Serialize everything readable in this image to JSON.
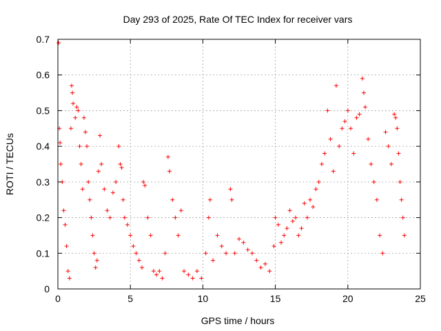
{
  "chart_data": {
    "type": "scatter",
    "title": "Day 293 of 2025, Rate Of TEC Index for receiver vars",
    "xlabel": "GPS time / hours",
    "ylabel": "ROTI / TECUs",
    "xlim": [
      0,
      25
    ],
    "ylim": [
      0,
      0.7
    ],
    "xticks": [
      0,
      5,
      10,
      15,
      20,
      25
    ],
    "yticks": [
      0,
      0.1,
      0.2,
      0.3,
      0.4,
      0.5,
      0.6,
      0.7
    ],
    "xtick_labels": [
      "0",
      "5",
      "10",
      "15",
      "20",
      "25"
    ],
    "ytick_labels": [
      "0",
      "0.1",
      "0.2",
      "0.3",
      "0.4",
      "0.5",
      "0.6",
      "0.7"
    ],
    "grid": true,
    "marker": "plus",
    "marker_color": "#ff0000",
    "series": [
      {
        "points": [
          [
            0.05,
            0.69
          ],
          [
            0.1,
            0.45
          ],
          [
            0.15,
            0.41
          ],
          [
            0.2,
            0.35
          ],
          [
            0.3,
            0.3
          ],
          [
            0.4,
            0.22
          ],
          [
            0.5,
            0.18
          ],
          [
            0.6,
            0.12
          ],
          [
            0.7,
            0.05
          ],
          [
            0.8,
            0.03
          ],
          [
            0.9,
            0.45
          ],
          [
            0.95,
            0.57
          ],
          [
            1.0,
            0.55
          ],
          [
            1.05,
            0.52
          ],
          [
            1.2,
            0.48
          ],
          [
            1.3,
            0.51
          ],
          [
            1.4,
            0.5
          ],
          [
            1.5,
            0.4
          ],
          [
            1.6,
            0.35
          ],
          [
            1.7,
            0.28
          ],
          [
            1.8,
            0.48
          ],
          [
            1.9,
            0.44
          ],
          [
            2.0,
            0.4
          ],
          [
            2.1,
            0.3
          ],
          [
            2.2,
            0.25
          ],
          [
            2.3,
            0.2
          ],
          [
            2.4,
            0.15
          ],
          [
            2.5,
            0.1
          ],
          [
            2.6,
            0.06
          ],
          [
            2.7,
            0.08
          ],
          [
            2.8,
            0.33
          ],
          [
            2.9,
            0.43
          ],
          [
            3.0,
            0.35
          ],
          [
            3.2,
            0.28
          ],
          [
            3.4,
            0.22
          ],
          [
            3.6,
            0.2
          ],
          [
            3.8,
            0.27
          ],
          [
            4.0,
            0.3
          ],
          [
            4.2,
            0.4
          ],
          [
            4.3,
            0.35
          ],
          [
            4.4,
            0.34
          ],
          [
            4.5,
            0.25
          ],
          [
            4.6,
            0.2
          ],
          [
            4.8,
            0.18
          ],
          [
            5.0,
            0.15
          ],
          [
            5.2,
            0.12
          ],
          [
            5.4,
            0.1
          ],
          [
            5.6,
            0.08
          ],
          [
            5.8,
            0.06
          ],
          [
            5.9,
            0.3
          ],
          [
            6.0,
            0.29
          ],
          [
            6.2,
            0.2
          ],
          [
            6.4,
            0.15
          ],
          [
            6.6,
            0.05
          ],
          [
            6.8,
            0.04
          ],
          [
            7.0,
            0.05
          ],
          [
            7.2,
            0.03
          ],
          [
            7.4,
            0.1
          ],
          [
            7.6,
            0.37
          ],
          [
            7.7,
            0.33
          ],
          [
            7.9,
            0.25
          ],
          [
            8.1,
            0.2
          ],
          [
            8.3,
            0.15
          ],
          [
            8.5,
            0.22
          ],
          [
            8.7,
            0.05
          ],
          [
            9.0,
            0.04
          ],
          [
            9.3,
            0.03
          ],
          [
            9.6,
            0.05
          ],
          [
            9.9,
            0.03
          ],
          [
            10.2,
            0.1
          ],
          [
            10.4,
            0.2
          ],
          [
            10.5,
            0.25
          ],
          [
            10.7,
            0.08
          ],
          [
            11.0,
            0.15
          ],
          [
            11.3,
            0.12
          ],
          [
            11.6,
            0.1
          ],
          [
            11.9,
            0.28
          ],
          [
            12.0,
            0.25
          ],
          [
            12.2,
            0.1
          ],
          [
            12.5,
            0.14
          ],
          [
            12.8,
            0.13
          ],
          [
            13.1,
            0.11
          ],
          [
            13.4,
            0.1
          ],
          [
            13.7,
            0.08
          ],
          [
            14.0,
            0.06
          ],
          [
            14.3,
            0.07
          ],
          [
            14.6,
            0.05
          ],
          [
            14.9,
            0.12
          ],
          [
            15.0,
            0.2
          ],
          [
            15.2,
            0.18
          ],
          [
            15.4,
            0.13
          ],
          [
            15.6,
            0.15
          ],
          [
            15.8,
            0.17
          ],
          [
            16.0,
            0.22
          ],
          [
            16.2,
            0.19
          ],
          [
            16.4,
            0.2
          ],
          [
            16.6,
            0.15
          ],
          [
            16.8,
            0.17
          ],
          [
            17.0,
            0.24
          ],
          [
            17.2,
            0.2
          ],
          [
            17.4,
            0.25
          ],
          [
            17.6,
            0.23
          ],
          [
            17.8,
            0.28
          ],
          [
            18.0,
            0.3
          ],
          [
            18.2,
            0.35
          ],
          [
            18.4,
            0.38
          ],
          [
            18.6,
            0.5
          ],
          [
            18.8,
            0.42
          ],
          [
            19.0,
            0.33
          ],
          [
            19.2,
            0.57
          ],
          [
            19.4,
            0.4
          ],
          [
            19.6,
            0.45
          ],
          [
            19.8,
            0.47
          ],
          [
            20.0,
            0.5
          ],
          [
            20.2,
            0.45
          ],
          [
            20.4,
            0.38
          ],
          [
            20.6,
            0.48
          ],
          [
            20.8,
            0.49
          ],
          [
            21.0,
            0.59
          ],
          [
            21.1,
            0.55
          ],
          [
            21.2,
            0.51
          ],
          [
            21.4,
            0.42
          ],
          [
            21.6,
            0.35
          ],
          [
            21.8,
            0.3
          ],
          [
            22.0,
            0.25
          ],
          [
            22.2,
            0.15
          ],
          [
            22.4,
            0.1
          ],
          [
            22.6,
            0.44
          ],
          [
            22.8,
            0.4
          ],
          [
            23.0,
            0.35
          ],
          [
            23.2,
            0.49
          ],
          [
            23.3,
            0.48
          ],
          [
            23.4,
            0.45
          ],
          [
            23.5,
            0.38
          ],
          [
            23.6,
            0.3
          ],
          [
            23.7,
            0.25
          ],
          [
            23.8,
            0.2
          ],
          [
            23.9,
            0.15
          ]
        ]
      }
    ]
  }
}
